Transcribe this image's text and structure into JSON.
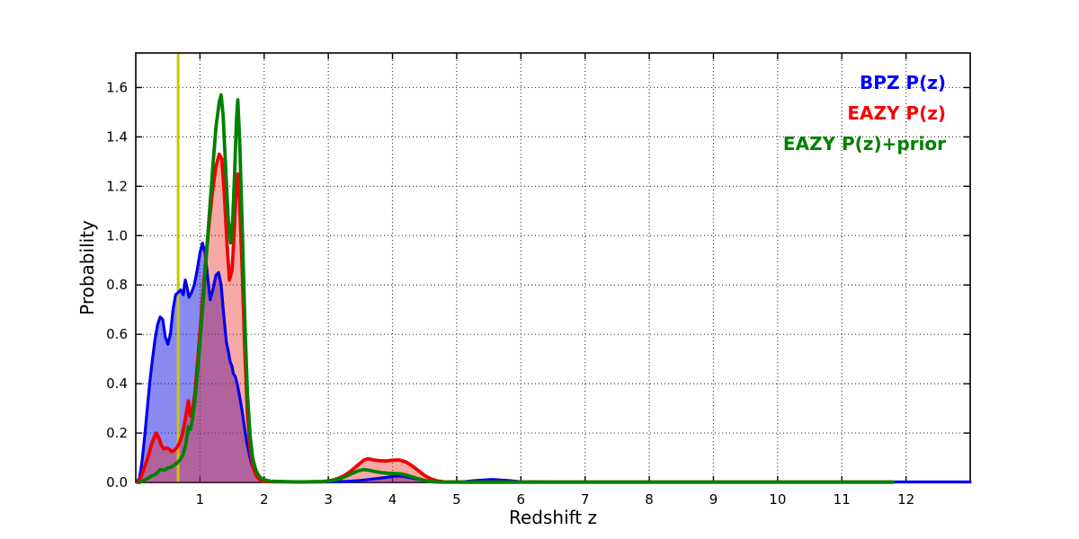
{
  "figure": {
    "background": "#ffffff",
    "xlabel": "Redshift z",
    "ylabel": "Probability"
  },
  "chart_data": {
    "type": "area",
    "title": "",
    "xlabel": "Redshift z",
    "ylabel": "Probability",
    "xlim": [
      0,
      13
    ],
    "ylim": [
      0,
      1.74
    ],
    "grid": "dotted",
    "grid_color": "#3c3c3c",
    "frame_color": "#000000",
    "xticks": [
      1,
      2,
      3,
      4,
      5,
      6,
      7,
      8,
      9,
      10,
      11,
      12
    ],
    "xtick_labels": [
      "1",
      "2",
      "3",
      "4",
      "5",
      "6",
      "7",
      "8",
      "9",
      "10",
      "11",
      "12"
    ],
    "yticks": [
      0.0,
      0.2,
      0.4,
      0.6,
      0.8,
      1.0,
      1.2,
      1.4,
      1.6
    ],
    "ytick_labels": [
      "0.0",
      "0.2",
      "0.4",
      "0.6",
      "0.8",
      "1.0",
      "1.2",
      "1.4",
      "1.6"
    ],
    "marker_line": {
      "x": 0.66,
      "color": "#c8c800",
      "width": 3
    },
    "legend": {
      "position": "upper-right",
      "frame": false,
      "entries": [
        {
          "label": "BPZ P(z)",
          "color": "#0000ff"
        },
        {
          "label": "EAZY P(z)",
          "color": "#ff0000"
        },
        {
          "label": "EAZY P(z)+prior",
          "color": "#008000"
        }
      ]
    },
    "series": [
      {
        "name": "BPZ P(z)",
        "line_color": "#0000ee",
        "line_width": 3.2,
        "filled": true,
        "fill_color": "rgba(10,10,230,0.48)",
        "points": [
          [
            0.02,
            0.0
          ],
          [
            0.06,
            0.02
          ],
          [
            0.1,
            0.09
          ],
          [
            0.14,
            0.19
          ],
          [
            0.18,
            0.3
          ],
          [
            0.22,
            0.41
          ],
          [
            0.26,
            0.5
          ],
          [
            0.3,
            0.58
          ],
          [
            0.34,
            0.64
          ],
          [
            0.38,
            0.67
          ],
          [
            0.42,
            0.66
          ],
          [
            0.46,
            0.59
          ],
          [
            0.5,
            0.56
          ],
          [
            0.54,
            0.6
          ],
          [
            0.58,
            0.7
          ],
          [
            0.62,
            0.76
          ],
          [
            0.66,
            0.77
          ],
          [
            0.7,
            0.78
          ],
          [
            0.74,
            0.76
          ],
          [
            0.77,
            0.82
          ],
          [
            0.8,
            0.79
          ],
          [
            0.83,
            0.75
          ],
          [
            0.87,
            0.77
          ],
          [
            0.91,
            0.8
          ],
          [
            0.95,
            0.85
          ],
          [
            1.0,
            0.93
          ],
          [
            1.04,
            0.97
          ],
          [
            1.08,
            0.93
          ],
          [
            1.12,
            0.83
          ],
          [
            1.16,
            0.74
          ],
          [
            1.2,
            0.78
          ],
          [
            1.25,
            0.84
          ],
          [
            1.29,
            0.85
          ],
          [
            1.33,
            0.8
          ],
          [
            1.37,
            0.68
          ],
          [
            1.41,
            0.57
          ],
          [
            1.45,
            0.52
          ],
          [
            1.47,
            0.49
          ],
          [
            1.5,
            0.47
          ],
          [
            1.52,
            0.44
          ],
          [
            1.55,
            0.43
          ],
          [
            1.58,
            0.4
          ],
          [
            1.61,
            0.36
          ],
          [
            1.65,
            0.3
          ],
          [
            1.69,
            0.23
          ],
          [
            1.73,
            0.16
          ],
          [
            1.77,
            0.11
          ],
          [
            1.81,
            0.07
          ],
          [
            1.86,
            0.04
          ],
          [
            1.91,
            0.02
          ],
          [
            1.96,
            0.01
          ],
          [
            2.05,
            0.005
          ],
          [
            2.2,
            0.003
          ],
          [
            2.6,
            0.002
          ],
          [
            3.0,
            0.002
          ],
          [
            3.3,
            0.004
          ],
          [
            3.5,
            0.008
          ],
          [
            3.7,
            0.014
          ],
          [
            3.9,
            0.02
          ],
          [
            4.05,
            0.026
          ],
          [
            4.15,
            0.025
          ],
          [
            4.3,
            0.018
          ],
          [
            4.45,
            0.01
          ],
          [
            4.6,
            0.004
          ],
          [
            4.8,
            0.002
          ],
          [
            5.1,
            0.003
          ],
          [
            5.3,
            0.008
          ],
          [
            5.55,
            0.012
          ],
          [
            5.8,
            0.008
          ],
          [
            6.0,
            0.003
          ],
          [
            6.5,
            0.002
          ],
          [
            8.0,
            0.002
          ],
          [
            10.0,
            0.002
          ],
          [
            13.0,
            0.002
          ]
        ]
      },
      {
        "name": "EAZY P(z)",
        "line_color": "#f00000",
        "line_width": 3.8,
        "filled": true,
        "fill_color": "rgba(235,40,30,0.40)",
        "points": [
          [
            0.03,
            0.0
          ],
          [
            0.08,
            0.02
          ],
          [
            0.12,
            0.05
          ],
          [
            0.16,
            0.08
          ],
          [
            0.2,
            0.11
          ],
          [
            0.24,
            0.15
          ],
          [
            0.28,
            0.18
          ],
          [
            0.32,
            0.2
          ],
          [
            0.36,
            0.18
          ],
          [
            0.4,
            0.15
          ],
          [
            0.44,
            0.135
          ],
          [
            0.48,
            0.14
          ],
          [
            0.52,
            0.135
          ],
          [
            0.56,
            0.125
          ],
          [
            0.6,
            0.13
          ],
          [
            0.64,
            0.14
          ],
          [
            0.68,
            0.16
          ],
          [
            0.72,
            0.19
          ],
          [
            0.76,
            0.24
          ],
          [
            0.8,
            0.3
          ],
          [
            0.82,
            0.33
          ],
          [
            0.85,
            0.27
          ],
          [
            0.88,
            0.28
          ],
          [
            0.92,
            0.36
          ],
          [
            0.96,
            0.48
          ],
          [
            1.0,
            0.61
          ],
          [
            1.05,
            0.78
          ],
          [
            1.1,
            0.93
          ],
          [
            1.15,
            1.07
          ],
          [
            1.2,
            1.19
          ],
          [
            1.25,
            1.28
          ],
          [
            1.3,
            1.33
          ],
          [
            1.34,
            1.31
          ],
          [
            1.38,
            1.17
          ],
          [
            1.42,
            0.97
          ],
          [
            1.46,
            0.82
          ],
          [
            1.5,
            0.86
          ],
          [
            1.53,
            1.0
          ],
          [
            1.56,
            1.18
          ],
          [
            1.59,
            1.25
          ],
          [
            1.62,
            1.13
          ],
          [
            1.66,
            0.85
          ],
          [
            1.7,
            0.52
          ],
          [
            1.74,
            0.28
          ],
          [
            1.78,
            0.14
          ],
          [
            1.82,
            0.07
          ],
          [
            1.87,
            0.03
          ],
          [
            1.92,
            0.013
          ],
          [
            1.98,
            0.006
          ],
          [
            2.1,
            0.003
          ],
          [
            2.5,
            0.002
          ],
          [
            2.9,
            0.003
          ],
          [
            3.05,
            0.008
          ],
          [
            3.15,
            0.016
          ],
          [
            3.25,
            0.028
          ],
          [
            3.35,
            0.046
          ],
          [
            3.45,
            0.068
          ],
          [
            3.55,
            0.09
          ],
          [
            3.62,
            0.096
          ],
          [
            3.7,
            0.091
          ],
          [
            3.8,
            0.088
          ],
          [
            3.9,
            0.087
          ],
          [
            4.0,
            0.09
          ],
          [
            4.1,
            0.091
          ],
          [
            4.2,
            0.084
          ],
          [
            4.3,
            0.068
          ],
          [
            4.4,
            0.048
          ],
          [
            4.5,
            0.028
          ],
          [
            4.6,
            0.014
          ],
          [
            4.7,
            0.006
          ],
          [
            4.82,
            0.002
          ],
          [
            5.1,
            0.001
          ],
          [
            8.0,
            0.001
          ],
          [
            11.8,
            0.001
          ]
        ]
      },
      {
        "name": "EAZY P(z)+prior",
        "line_color": "#008000",
        "line_width": 3.8,
        "filled": false,
        "fill_color": null,
        "points": [
          [
            0.06,
            0.0
          ],
          [
            0.12,
            0.008
          ],
          [
            0.18,
            0.015
          ],
          [
            0.24,
            0.025
          ],
          [
            0.3,
            0.032
          ],
          [
            0.34,
            0.04
          ],
          [
            0.38,
            0.052
          ],
          [
            0.42,
            0.05
          ],
          [
            0.46,
            0.052
          ],
          [
            0.5,
            0.058
          ],
          [
            0.55,
            0.062
          ],
          [
            0.6,
            0.07
          ],
          [
            0.65,
            0.08
          ],
          [
            0.7,
            0.095
          ],
          [
            0.74,
            0.115
          ],
          [
            0.78,
            0.155
          ],
          [
            0.82,
            0.225
          ],
          [
            0.85,
            0.215
          ],
          [
            0.88,
            0.25
          ],
          [
            0.92,
            0.33
          ],
          [
            0.96,
            0.44
          ],
          [
            1.0,
            0.57
          ],
          [
            1.05,
            0.74
          ],
          [
            1.1,
            0.92
          ],
          [
            1.15,
            1.1
          ],
          [
            1.2,
            1.28
          ],
          [
            1.25,
            1.44
          ],
          [
            1.3,
            1.54
          ],
          [
            1.33,
            1.57
          ],
          [
            1.36,
            1.49
          ],
          [
            1.4,
            1.28
          ],
          [
            1.44,
            1.07
          ],
          [
            1.48,
            0.97
          ],
          [
            1.51,
            1.06
          ],
          [
            1.54,
            1.25
          ],
          [
            1.57,
            1.48
          ],
          [
            1.59,
            1.55
          ],
          [
            1.62,
            1.38
          ],
          [
            1.66,
            1.02
          ],
          [
            1.7,
            0.64
          ],
          [
            1.74,
            0.36
          ],
          [
            1.78,
            0.19
          ],
          [
            1.82,
            0.1
          ],
          [
            1.87,
            0.05
          ],
          [
            1.92,
            0.025
          ],
          [
            1.98,
            0.012
          ],
          [
            2.1,
            0.005
          ],
          [
            2.5,
            0.002
          ],
          [
            2.9,
            0.003
          ],
          [
            3.05,
            0.007
          ],
          [
            3.15,
            0.013
          ],
          [
            3.25,
            0.022
          ],
          [
            3.35,
            0.034
          ],
          [
            3.45,
            0.045
          ],
          [
            3.55,
            0.052
          ],
          [
            3.62,
            0.05
          ],
          [
            3.72,
            0.044
          ],
          [
            3.82,
            0.04
          ],
          [
            3.92,
            0.037
          ],
          [
            4.02,
            0.036
          ],
          [
            4.12,
            0.035
          ],
          [
            4.22,
            0.029
          ],
          [
            4.32,
            0.021
          ],
          [
            4.42,
            0.013
          ],
          [
            4.52,
            0.007
          ],
          [
            4.62,
            0.003
          ],
          [
            4.75,
            0.001
          ],
          [
            5.1,
            0.001
          ],
          [
            8.0,
            0.001
          ],
          [
            11.8,
            0.001
          ]
        ]
      }
    ]
  }
}
